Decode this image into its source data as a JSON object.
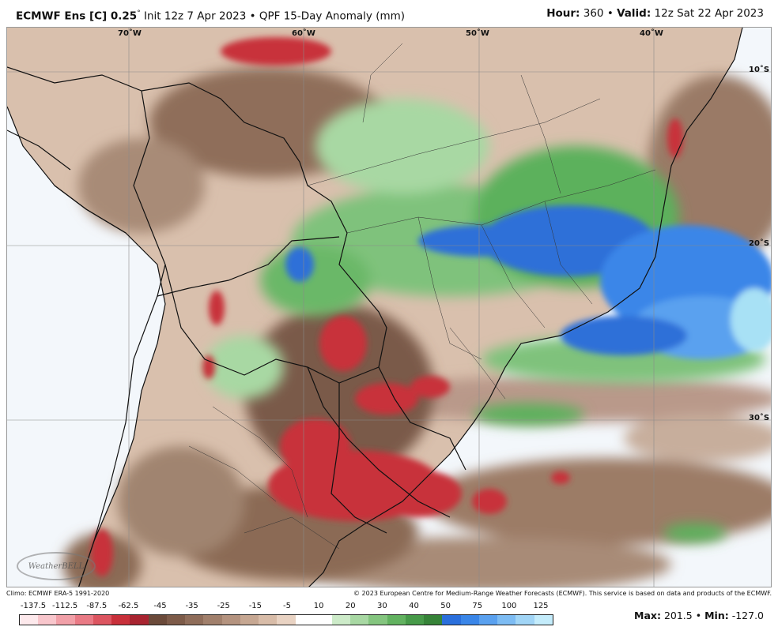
{
  "header": {
    "model": "ECMWF Ens [C] 0.25",
    "degree": "°",
    "init": "Init 12z 7 Apr 2023",
    "bullet": "•",
    "product": "QPF 15-Day Anomaly (mm)",
    "hour_label": "Hour:",
    "hour_value": "360",
    "valid_label": "Valid:",
    "valid_value": "12z Sat 22 Apr 2023"
  },
  "map": {
    "lon_labels": [
      "70˚W",
      "60˚W",
      "50˚W",
      "40˚W"
    ],
    "lat_labels": [
      "10˚S",
      "20˚S",
      "30˚S"
    ],
    "logo_text": "WeatherBELL",
    "colors": {
      "ocean": "#f3f7fb",
      "strong_negative": "#c8303a",
      "negative": "#8b6a55",
      "weak_negative": "#c9a78f",
      "near_zero": "#efe3d9",
      "weak_positive": "#a8d8a3",
      "positive": "#4caf5a",
      "strong_positive": "#2f6fd8",
      "very_strong_positive": "#a8e1f5",
      "borders": "#111111"
    }
  },
  "credits": {
    "climo": "Climo: ECMWF ERA-5 1991-2020",
    "copyright": "© 2023 European Centre for Medium-Range Weather Forecasts (ECMWF). This service is based on data and products of the ECMWF."
  },
  "legend": {
    "ticks": [
      "-137.5",
      "-112.5",
      "-87.5",
      "-62.5",
      "-45",
      "-35",
      "-25",
      "-15",
      "-5",
      "10",
      "20",
      "30",
      "40",
      "50",
      "75",
      "100",
      "125"
    ],
    "colors": [
      "#fde9ec",
      "#f8c6cc",
      "#f1a0a8",
      "#e97a85",
      "#dc5560",
      "#c8303a",
      "#a82430",
      "#6b4a3a",
      "#7d5b49",
      "#8f6d5a",
      "#a1806c",
      "#b4937f",
      "#c6a792",
      "#d8bca8",
      "#e9d3c3",
      "#ffffff",
      "#ffffff",
      "#cdebc9",
      "#a8d8a3",
      "#84c57f",
      "#62b260",
      "#479a49",
      "#368338",
      "#2a6fdc",
      "#3a86e8",
      "#5aa1ef",
      "#7dbcf3",
      "#a1d5f6",
      "#c4ecfb"
    ]
  },
  "stats": {
    "max_label": "Max:",
    "max_value": "201.5",
    "min_label": "Min:",
    "min_value": "-127.0"
  }
}
